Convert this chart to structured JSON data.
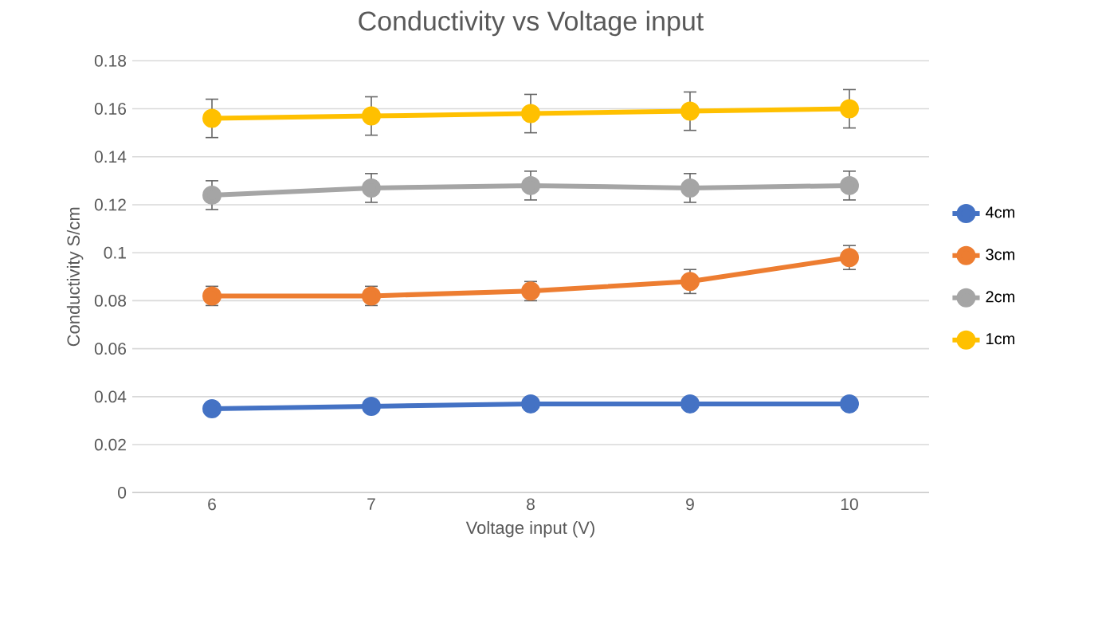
{
  "chart_data": {
    "type": "line",
    "title": "Conductivity vs Voltage input",
    "xlabel": "Voltage input (V)",
    "ylabel": "Conductivity S/cm",
    "categories": [
      "6",
      "7",
      "8",
      "9",
      "10"
    ],
    "series": [
      {
        "name": "4cm",
        "color": "#4472c4",
        "values": [
          0.035,
          0.036,
          0.037,
          0.037,
          0.037
        ]
      },
      {
        "name": "3cm",
        "color": "#ed7d31",
        "values": [
          0.082,
          0.082,
          0.084,
          0.088,
          0.098
        ],
        "errors": [
          0.004,
          0.004,
          0.004,
          0.005,
          0.005
        ]
      },
      {
        "name": "2cm",
        "color": "#a5a5a5",
        "values": [
          0.124,
          0.127,
          0.128,
          0.127,
          0.128
        ],
        "errors": [
          0.006,
          0.006,
          0.006,
          0.006,
          0.006
        ]
      },
      {
        "name": "1cm",
        "color": "#ffc000",
        "values": [
          0.156,
          0.157,
          0.158,
          0.159,
          0.16
        ],
        "errors": [
          0.008,
          0.008,
          0.008,
          0.008,
          0.008
        ]
      }
    ],
    "ylim": [
      0,
      0.18
    ],
    "yticks": [
      0,
      0.02,
      0.04,
      0.06,
      0.08,
      0.1,
      0.12,
      0.14,
      0.16,
      0.18
    ],
    "grid": "y",
    "legend": "right",
    "marker": "circle",
    "line_style": "solid"
  }
}
